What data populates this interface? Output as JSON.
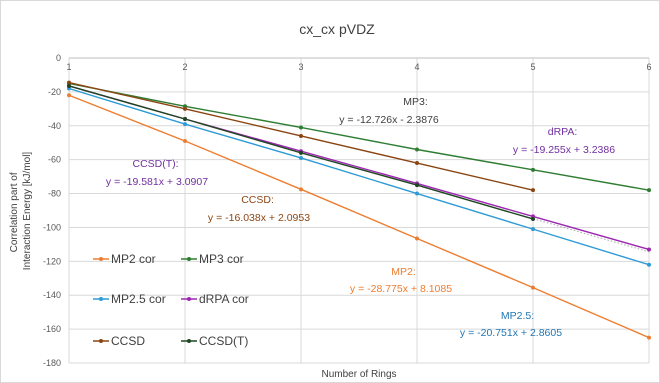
{
  "chart_data": {
    "type": "line",
    "title": "cx_cx pVDZ",
    "xlabel": "Number of Rings",
    "ylabel": [
      "Correlation part of",
      "Interaction Energy [kJ/mol]"
    ],
    "xlim": [
      1,
      6
    ],
    "ylim": [
      -180,
      0
    ],
    "x_ticks": [
      1,
      2,
      3,
      4,
      5,
      6
    ],
    "y_ticks": [
      0,
      -20,
      -40,
      -60,
      -80,
      -100,
      -120,
      -140,
      -160,
      -180
    ],
    "grid": true,
    "series": [
      {
        "name": "MP2 cor",
        "color": "#ed7d31",
        "x": [
          1,
          2,
          3,
          4,
          5,
          6
        ],
        "y": [
          -22,
          -49,
          -77.5,
          -106.5,
          -135.5,
          -165
        ]
      },
      {
        "name": "MP3 cor",
        "color": "#2e7d32",
        "x": [
          1,
          2,
          3,
          4,
          5,
          6
        ],
        "y": [
          -15,
          -28.5,
          -41,
          -54,
          -66,
          -78
        ]
      },
      {
        "name": "MP2.5 cor",
        "color": "#2e9bd6",
        "x": [
          1,
          2,
          3,
          4,
          5,
          6
        ],
        "y": [
          -18,
          -39,
          -59,
          -80,
          -101,
          -122
        ]
      },
      {
        "name": "dRPA cor",
        "color": "#9c27b0",
        "x": [
          1,
          2,
          3,
          4,
          5,
          6
        ],
        "y": [
          -16.5,
          -36,
          -55,
          -74,
          -93.5,
          -113
        ]
      },
      {
        "name": "CCSD",
        "color": "#8b4513",
        "x": [
          1,
          2,
          3,
          4,
          5
        ],
        "y": [
          -14.5,
          -30,
          -46,
          -62,
          -78
        ]
      },
      {
        "name": "CCSD(T)",
        "color": "#1e4620",
        "x": [
          1,
          2,
          3,
          4,
          5
        ],
        "y": [
          -16.5,
          -36,
          -56,
          -75,
          -95
        ]
      }
    ],
    "trendline": {
      "series": "CCSD(T)",
      "slope": -19.581,
      "intercept": 3.0907,
      "x": [
        1,
        6
      ],
      "color": "#a6a6a6"
    },
    "annotations": [
      {
        "title": "MP3:",
        "equation": "y = -12.726x - 2.3876",
        "color": "#404040"
      },
      {
        "title": "dRPA:",
        "equation": "y = -19.255x + 3.2386",
        "color": "#7030a0"
      },
      {
        "title": "CCSD(T):",
        "equation": "y = -19.581x + 3.0907",
        "color": "#7030a0"
      },
      {
        "title": "CCSD:",
        "equation": "y = -16.038x + 2.0953",
        "color": "#8b4513"
      },
      {
        "title": "MP2:",
        "equation": "y = -28.775x + 8.1085",
        "color": "#ed7d31"
      },
      {
        "title": "MP2.5:",
        "equation": "y = -20.751x + 2.8605",
        "color": "#1f77b4"
      }
    ],
    "legend_position": "left-bottom"
  }
}
